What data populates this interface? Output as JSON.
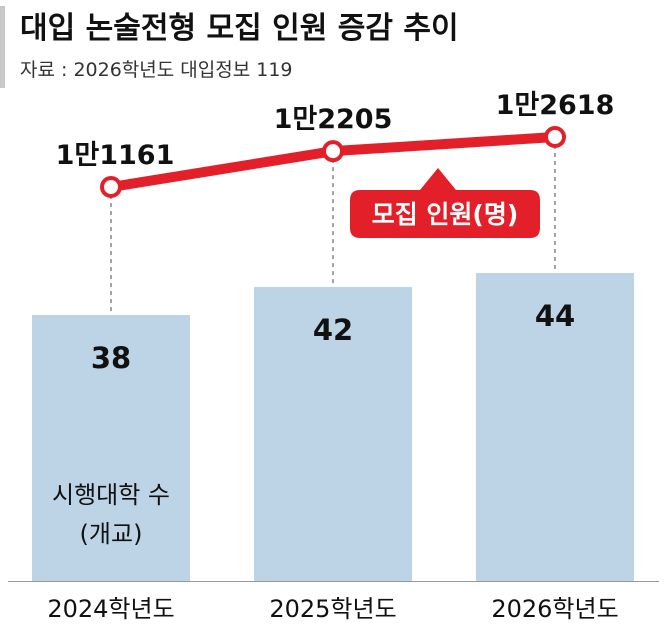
{
  "title": "대입 논술전형 모집 인원 증감 추이",
  "source": "자료 : 2026학년도 대입정보 119",
  "colors": {
    "bar": "#bcd4e6",
    "line": "#e3202a",
    "point_fill": "#ffffff",
    "text": "#111111",
    "subtext": "#333333",
    "grid_dashed": "#666666"
  },
  "chart_data": {
    "type": "bar",
    "categories": [
      "2024학년도",
      "2025학년도",
      "2026학년도"
    ],
    "series": [
      {
        "name": "시행대학 수",
        "unit": "(개교)",
        "values": [
          38,
          42,
          44
        ],
        "value_labels": [
          "38",
          "42",
          "44"
        ]
      },
      {
        "name": "모집 인원(명)",
        "type": "line",
        "values": [
          11161,
          12205,
          12618
        ],
        "value_labels": [
          "1만1161",
          "1만2205",
          "1만2618"
        ]
      }
    ]
  }
}
